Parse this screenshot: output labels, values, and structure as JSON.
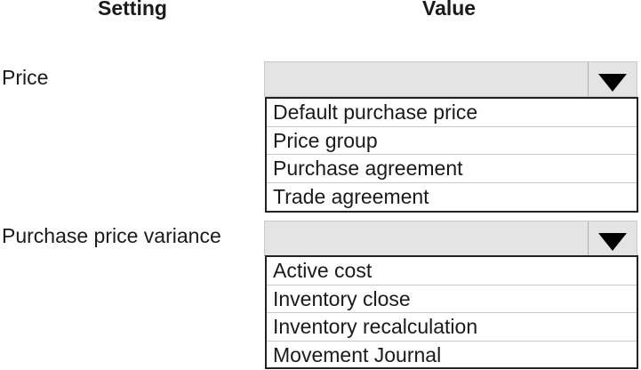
{
  "headers": {
    "setting": "Setting",
    "value": "Value"
  },
  "rows": [
    {
      "label": "Price",
      "options": [
        "Default purchase price",
        "Price group",
        "Purchase agreement",
        "Trade agreement"
      ]
    },
    {
      "label": "Purchase price variance",
      "options": [
        "Active cost",
        "Inventory close",
        "Inventory recalculation",
        "Movement Journal"
      ]
    }
  ]
}
